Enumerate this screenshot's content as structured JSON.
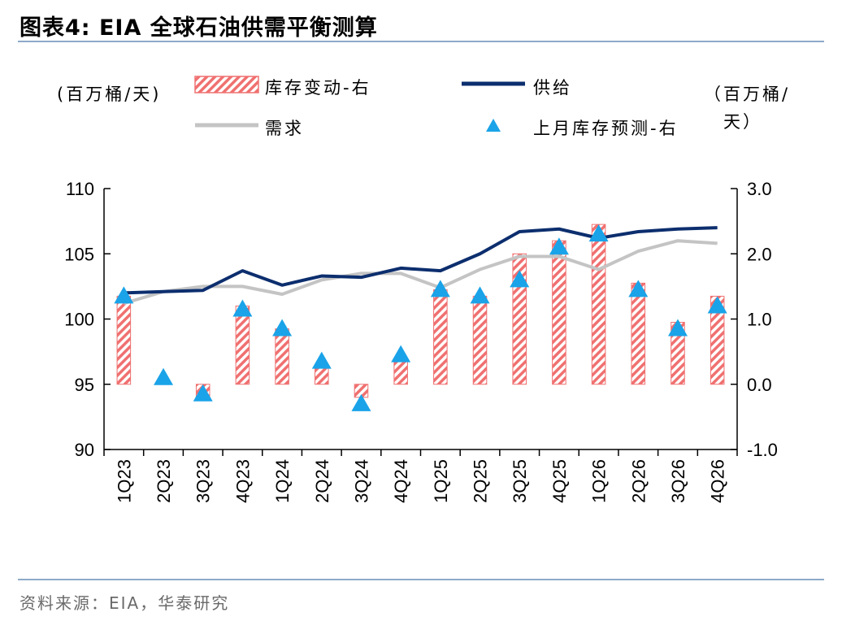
{
  "title": "图表4:  EIA 全球石油供需平衡测算",
  "source": "资料来源：EIA，华泰研究",
  "left_unit": "(百万桶/天)",
  "right_unit_line1": "（百万桶/",
  "right_unit_line2": "天）",
  "colors": {
    "supply": "#0c2e6e",
    "demand": "#c4c4c4",
    "bar": "#f07070",
    "triangle": "#1aa3e8"
  },
  "chart_data": {
    "type": "bar",
    "categories": [
      "1Q23",
      "2Q23",
      "3Q23",
      "4Q23",
      "1Q24",
      "2Q24",
      "3Q24",
      "4Q24",
      "1Q25",
      "2Q25",
      "3Q25",
      "4Q25",
      "1Q26",
      "2Q26",
      "3Q26",
      "4Q26"
    ],
    "series": [
      {
        "name": "库存变动-右",
        "axis": "right",
        "kind": "bar",
        "values": [
          1.35,
          0.05,
          -0.2,
          1.2,
          0.85,
          0.3,
          -0.2,
          0.4,
          1.45,
          1.35,
          2.0,
          2.2,
          2.45,
          1.55,
          0.95,
          1.35
        ]
      },
      {
        "name": "供给",
        "axis": "left",
        "kind": "line",
        "values": [
          102.0,
          102.1,
          102.2,
          103.7,
          102.6,
          103.3,
          103.2,
          103.9,
          103.7,
          105.0,
          106.7,
          106.9,
          106.2,
          106.7,
          106.9,
          107.0
        ]
      },
      {
        "name": "需求",
        "axis": "left",
        "kind": "line",
        "values": [
          101.2,
          102.1,
          102.5,
          102.5,
          101.9,
          103.0,
          103.5,
          103.5,
          102.4,
          103.8,
          104.8,
          104.8,
          103.8,
          105.2,
          106.0,
          105.8
        ]
      },
      {
        "name": "上月库存预测-右",
        "axis": "right",
        "kind": "marker",
        "values": [
          1.35,
          0.1,
          -0.15,
          1.15,
          0.85,
          0.35,
          -0.3,
          0.45,
          1.45,
          1.35,
          1.6,
          2.1,
          2.3,
          1.45,
          0.85,
          1.2
        ]
      }
    ],
    "y_left": {
      "min": 90,
      "max": 110,
      "ticks": [
        "90",
        "95",
        "100",
        "105",
        "110"
      ]
    },
    "y_right": {
      "min": -1.0,
      "max": 3.0,
      "ticks": [
        "-1.0",
        "0.0",
        "1.0",
        "2.0",
        "3.0"
      ]
    }
  }
}
